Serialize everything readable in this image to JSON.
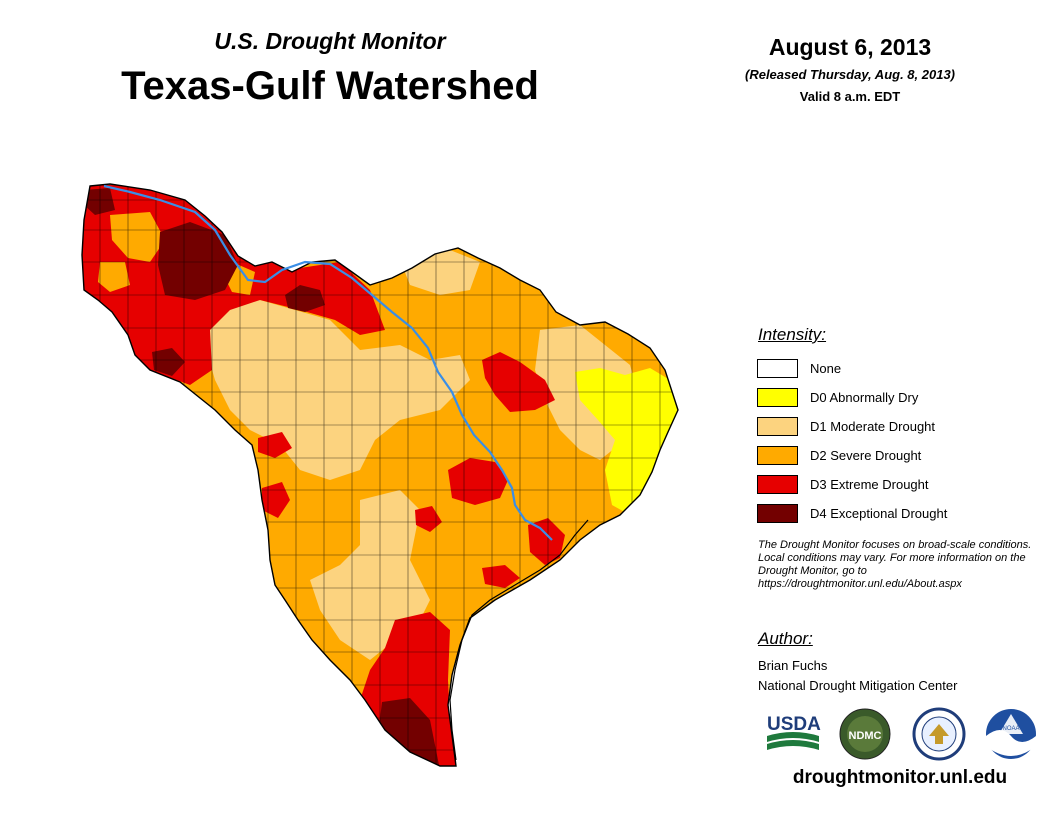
{
  "header": {
    "subtitle": "U.S. Drought Monitor",
    "title": "Texas-Gulf Watershed",
    "date": "August 6, 2013",
    "released": "(Released Thursday, Aug. 8, 2013)",
    "valid": "Valid 8 a.m. EDT"
  },
  "legend": {
    "title": "Intensity:",
    "items": [
      {
        "label": "None",
        "color": "#FFFFFF"
      },
      {
        "label": "D0 Abnormally Dry",
        "color": "#FFFF00"
      },
      {
        "label": "D1 Moderate Drought",
        "color": "#FCD37F"
      },
      {
        "label": "D2 Severe Drought",
        "color": "#FFAA00"
      },
      {
        "label": "D3 Extreme Drought",
        "color": "#E60000"
      },
      {
        "label": "D4 Exceptional Drought",
        "color": "#730000"
      }
    ]
  },
  "note": "The Drought Monitor focuses on broad-scale conditions. Local conditions may vary. For more information on the Drought Monitor, go to https://droughtmonitor.unl.edu/About.aspx",
  "author": {
    "title": "Author:",
    "name": "Brian Fuchs",
    "org": "National Drought Mitigation Center"
  },
  "logos": {
    "usda": "USDA",
    "ndmc": "NDMC",
    "noaa": "NOAA"
  },
  "website": "droughtmonitor.unl.edu",
  "map": {
    "river_color": "#3A8EE6",
    "border_color": "#000000"
  }
}
